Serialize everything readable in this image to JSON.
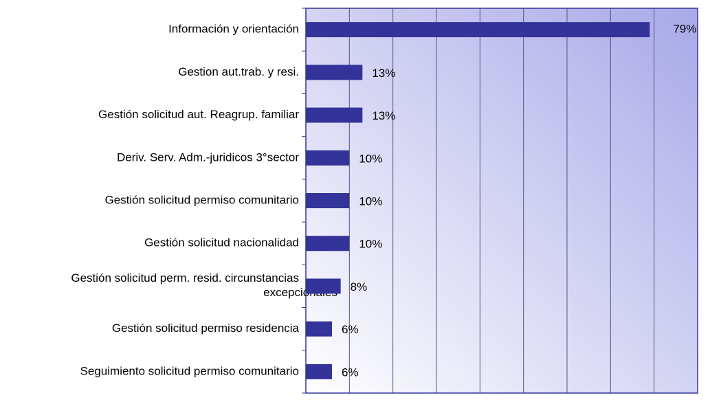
{
  "chart_data": {
    "type": "bar",
    "orientation": "horizontal",
    "categories": [
      "Información y orientación",
      "Gestion aut.trab. y resi.",
      "Gestión solicitud aut. Reagrup. familiar",
      "Deriv. Serv. Adm.-juridicos 3°sector",
      "Gestión solicitud permiso comunitario",
      "Gestión solicitud nacionalidad",
      "Gestión solicitud perm. resid. circunstancias excepcionales",
      "Gestión solicitud permiso residencia",
      "Seguimiento solicitud permiso comunitario"
    ],
    "values": [
      79,
      13,
      13,
      10,
      10,
      10,
      8,
      6,
      6
    ],
    "value_labels": [
      "79%",
      "13%",
      "13%",
      "10%",
      "10%",
      "10%",
      "8%",
      "6%",
      "6%"
    ],
    "color": "#333399",
    "xlim": [
      0,
      90
    ],
    "xticks": [
      {
        "value": 0,
        "label": "0%"
      },
      {
        "value": 10,
        "label": "10%"
      },
      {
        "value": 20,
        "label": "20%"
      },
      {
        "value": 30,
        "label": "30%"
      },
      {
        "value": 40,
        "label": "40%"
      },
      {
        "value": 50,
        "label": "50%"
      },
      {
        "value": 60,
        "label": "60%"
      },
      {
        "value": 70,
        "label": "70%"
      },
      {
        "value": 80,
        "label": "80%"
      },
      {
        "value": 90,
        "label": "90%"
      }
    ],
    "grid": true
  }
}
